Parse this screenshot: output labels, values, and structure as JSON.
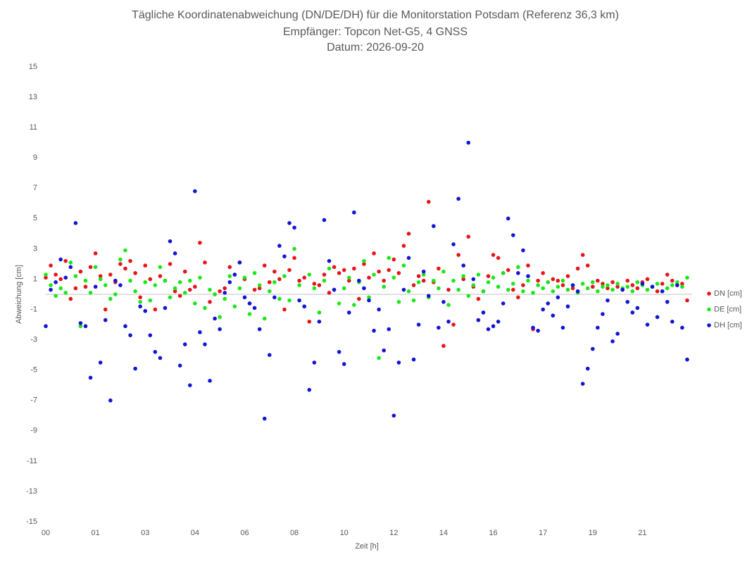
{
  "chart_data": {
    "type": "scatter",
    "title": "Tägliche Koordinatenabweichung (DN/DE/DH) für die Monitorstation Potsdam (Referenz 36,3 km)",
    "subtitle": [
      "Empfänger: Topcon Net-G5, 4 GNSS",
      "Datum: 2026-09-20"
    ],
    "x_label": "Zeit [h]",
    "y_label": "Abweichung [cm]",
    "legend": "right",
    "grid": false,
    "xlim": [
      0,
      260
    ],
    "xticks": [
      {
        "value": 0,
        "label": "00"
      },
      {
        "value": 20,
        "label": "01"
      },
      {
        "value": 40,
        "label": "03"
      },
      {
        "value": 60,
        "label": "04"
      },
      {
        "value": 80,
        "label": "06"
      },
      {
        "value": 100,
        "label": "08"
      },
      {
        "value": 120,
        "label": "10"
      },
      {
        "value": 140,
        "label": "12"
      },
      {
        "value": 160,
        "label": "14"
      },
      {
        "value": 180,
        "label": "16"
      },
      {
        "value": 200,
        "label": "17"
      },
      {
        "value": 220,
        "label": "19"
      },
      {
        "value": 240,
        "label": "21"
      }
    ],
    "ylim": [
      -15,
      15
    ],
    "yticks": [
      15,
      13,
      11,
      9,
      7,
      5,
      3,
      1,
      -1,
      -3,
      -5,
      -7,
      -9,
      -11,
      -13,
      -15
    ],
    "x": [
      0,
      2,
      4,
      6,
      8,
      10,
      12,
      14,
      16,
      18,
      20,
      22,
      24,
      26,
      28,
      30,
      32,
      34,
      36,
      38,
      40,
      42,
      44,
      46,
      48,
      50,
      52,
      54,
      56,
      58,
      60,
      62,
      64,
      66,
      68,
      70,
      72,
      74,
      76,
      78,
      80,
      82,
      84,
      86,
      88,
      90,
      92,
      94,
      96,
      98,
      100,
      102,
      104,
      106,
      108,
      110,
      112,
      114,
      116,
      118,
      120,
      122,
      124,
      126,
      128,
      130,
      132,
      134,
      136,
      138,
      140,
      142,
      144,
      146,
      148,
      150,
      152,
      154,
      156,
      158,
      160,
      162,
      164,
      166,
      168,
      170,
      172,
      174,
      176,
      178,
      180,
      182,
      184,
      186,
      188,
      190,
      192,
      194,
      196,
      198,
      200,
      202,
      204,
      206,
      208,
      210,
      212,
      214,
      216,
      218,
      220,
      222,
      224,
      226,
      228,
      230,
      232,
      234,
      236,
      238,
      240,
      242,
      244,
      246,
      248,
      250,
      252,
      254,
      256,
      258
    ],
    "series": [
      {
        "name": "DN [cm]",
        "color": "#e8141a",
        "values": [
          1.1,
          1.9,
          1.3,
          1.0,
          2.2,
          -0.3,
          0.4,
          1.5,
          0.5,
          1.8,
          2.7,
          1.2,
          -1.0,
          1.3,
          0.8,
          2.0,
          1.7,
          2.2,
          1.4,
          -0.2,
          1.9,
          1.0,
          -1.0,
          1.2,
          0.9,
          2.0,
          0.2,
          -0.1,
          1.5,
          0.3,
          0.5,
          3.4,
          2.1,
          -0.5,
          0.0,
          0.2,
          0.4,
          1.8,
          1.3,
          2.1,
          1.0,
          -0.6,
          0.3,
          0.4,
          1.9,
          0.8,
          1.5,
          1.0,
          -1.0,
          1.6,
          2.4,
          0.9,
          1.1,
          -1.8,
          0.7,
          0.6,
          1.3,
          0.1,
          1.8,
          1.4,
          1.6,
          0.9,
          1.7,
          -0.3,
          2.0,
          1.1,
          2.7,
          1.5,
          0.9,
          1.6,
          2.3,
          1.4,
          3.2,
          4.0,
          0.6,
          1.2,
          0.9,
          6.1,
          0.8,
          1.7,
          -3.4,
          0.3,
          -2.0,
          2.6,
          1.0,
          3.8,
          0.5,
          -0.3,
          0.2,
          1.2,
          2.6,
          2.4,
          1.4,
          1.6,
          0.3,
          -0.2,
          0.6,
          1.9,
          -2.3,
          0.9,
          1.4,
          0.8,
          1.0,
          0.9,
          0.6,
          1.2,
          0.4,
          1.7,
          2.6,
          1.9,
          0.5,
          0.9,
          0.7,
          0.4,
          0.8,
          0.5,
          0.3,
          0.9,
          0.6,
          0.4,
          0.8,
          1.0,
          0.5,
          0.2,
          0.7,
          1.3,
          0.9,
          0.6,
          0.7,
          -0.4
        ]
      },
      {
        "name": "DE [cm]",
        "color": "#18e818",
        "values": [
          1.3,
          0.6,
          -0.1,
          0.4,
          0.1,
          2.1,
          1.2,
          -2.1,
          0.9,
          0.1,
          1.8,
          1.0,
          0.6,
          -0.3,
          0.0,
          2.3,
          2.9,
          0.9,
          0.2,
          -0.5,
          0.8,
          -0.4,
          0.6,
          1.8,
          0.9,
          -0.2,
          0.4,
          0.8,
          0.1,
          0.9,
          -0.6,
          1.1,
          -0.9,
          0.3,
          0.0,
          -1.5,
          -0.3,
          1.2,
          -0.8,
          0.4,
          1.1,
          -1.3,
          1.4,
          0.6,
          -1.6,
          0.2,
          0.8,
          -0.3,
          1.2,
          -0.4,
          3.0,
          0.6,
          -0.8,
          1.3,
          0.4,
          -1.2,
          0.9,
          1.7,
          0.3,
          -0.6,
          0.4,
          1.1,
          -0.7,
          0.8,
          2.2,
          -0.2,
          1.3,
          -4.2,
          0.5,
          2.4,
          1.1,
          -0.5,
          1.9,
          0.2,
          -0.4,
          0.8,
          1.3,
          -0.2,
          0.9,
          0.4,
          1.5,
          -0.7,
          0.9,
          0.3,
          1.2,
          -0.1,
          0.6,
          1.3,
          0.2,
          0.8,
          1.1,
          0.5,
          1.4,
          0.3,
          0.7,
          1.8,
          0.2,
          0.9,
          0.1,
          0.6,
          0.4,
          0.8,
          0.2,
          0.5,
          0.9,
          0.3,
          0.6,
          0.1,
          0.7,
          0.4,
          0.8,
          0.2,
          0.5,
          0.6,
          0.3,
          0.7,
          0.4,
          0.5,
          0.2,
          0.8,
          0.6,
          0.3,
          0.5,
          0.7,
          0.2,
          0.4,
          0.6,
          0.8,
          0.5,
          1.1
        ]
      },
      {
        "name": "DH [cm]",
        "color": "#1414d8",
        "values": [
          -2.1,
          0.3,
          0.8,
          2.3,
          1.1,
          1.8,
          4.7,
          -1.9,
          -2.1,
          -5.5,
          0.5,
          -4.5,
          -1.7,
          -7.0,
          0.9,
          0.6,
          -2.1,
          -2.7,
          -4.9,
          -0.8,
          -1.1,
          -2.7,
          -3.8,
          -4.2,
          -0.9,
          3.5,
          2.7,
          -4.7,
          -3.3,
          -6.0,
          6.8,
          -2.5,
          -3.3,
          -5.7,
          -1.6,
          -2.3,
          0.1,
          0.8,
          1.3,
          2.1,
          -0.2,
          -0.6,
          -0.9,
          -2.3,
          -8.2,
          -4.0,
          -0.2,
          3.2,
          2.5,
          4.7,
          4.4,
          -0.4,
          -0.8,
          -6.3,
          -4.5,
          -1.8,
          4.9,
          2.2,
          0.3,
          -3.8,
          -4.6,
          -1.2,
          5.4,
          0.9,
          0.4,
          -0.4,
          -2.4,
          -1.0,
          -3.7,
          -2.3,
          -8.0,
          -4.5,
          0.3,
          2.4,
          -4.3,
          -2.0,
          1.5,
          -0.1,
          4.5,
          -2.2,
          -0.5,
          -1.8,
          3.3,
          6.3,
          1.9,
          10.0,
          1.0,
          -1.7,
          -1.2,
          -2.3,
          -2.1,
          -1.8,
          -0.6,
          5.0,
          3.9,
          1.4,
          2.9,
          1.2,
          -2.2,
          -2.4,
          -1.0,
          -0.6,
          -1.4,
          -0.2,
          -2.2,
          -0.8,
          0.6,
          0.2,
          -5.9,
          -4.9,
          -3.6,
          -2.2,
          -1.3,
          -0.4,
          -3.1,
          -2.6,
          0.3,
          -0.5,
          -1.2,
          -0.9,
          0.7,
          -2.0,
          0.5,
          -1.5,
          0.2,
          -0.5,
          -1.8,
          0.6,
          -2.2,
          -4.3
        ]
      }
    ]
  }
}
